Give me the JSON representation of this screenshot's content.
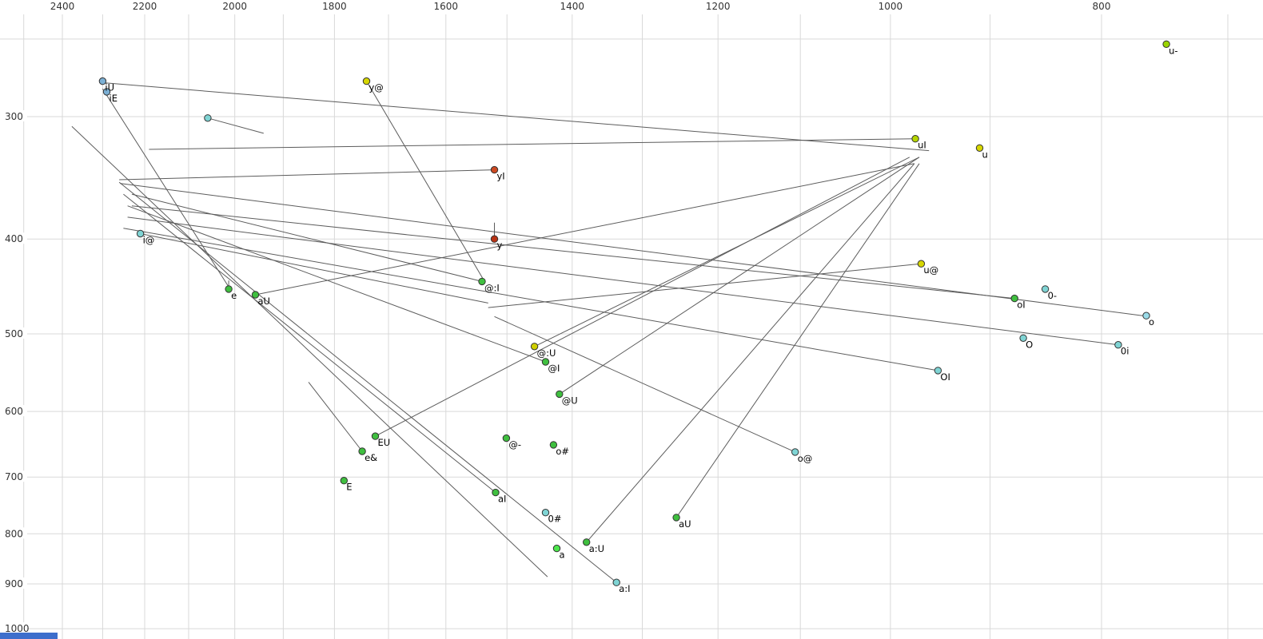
{
  "chart_data": {
    "type": "scatter",
    "title": "",
    "description": "Vowel formant plot (F2 horizontal reversed log scale in Hz, F1 vertical log scale in Hz) with diphthong trajectory lines",
    "x_axis": {
      "position": "top",
      "scale": "log",
      "reversed": true,
      "unit": "Hz",
      "tick_values": [
        2400,
        2200,
        2000,
        1800,
        1600,
        1400,
        1200,
        1000,
        800
      ],
      "tick_labels": [
        "2400",
        "2200",
        "2000",
        "1800",
        "1600",
        "1400",
        "1200",
        "1000",
        "800"
      ],
      "grid_values": [
        2500,
        2400,
        2300,
        2200,
        2100,
        2000,
        1900,
        1800,
        1700,
        1600,
        1500,
        1400,
        1300,
        1200,
        1100,
        1000,
        900,
        800,
        700
      ]
    },
    "y_axis": {
      "position": "left",
      "scale": "log",
      "unit": "Hz",
      "tick_values": [
        300,
        400,
        500,
        600,
        700,
        800,
        900,
        1000
      ],
      "tick_labels": [
        "300",
        "400",
        "500",
        "600",
        "700",
        "800",
        "900",
        "1000"
      ],
      "grid_values": [
        250,
        300,
        400,
        500,
        600,
        700,
        800,
        900,
        1000
      ]
    },
    "grid": true,
    "colors": {
      "grid_line": "#d9d9d9",
      "axis_text": "#333333",
      "trajectory_line": "#5c5c5c",
      "point_stroke": "#333333",
      "point_label": "#000000",
      "bottom_strip": "#3d6ecc"
    },
    "points": [
      {
        "label": "u-",
        "f2": 747,
        "f1": 253,
        "color": "#9ad400"
      },
      {
        "label": "iU",
        "f2": 2300,
        "f1": 276,
        "color": "#7bafd4"
      },
      {
        "label": "iE",
        "f2": 2290,
        "f1": 283,
        "color": "#7bafd4"
      },
      {
        "label": "",
        "f2": 2058,
        "f1": 301,
        "color": "#7fd4d4"
      },
      {
        "label": "y@",
        "f2": 1740,
        "f1": 276,
        "color": "#d6d600"
      },
      {
        "label": "uI",
        "f2": 974,
        "f1": 316,
        "color": "#b4d400"
      },
      {
        "label": "u",
        "f2": 910,
        "f1": 323,
        "color": "#d6d600"
      },
      {
        "label": "yI",
        "f2": 1520,
        "f1": 340,
        "color": "#cc4a22"
      },
      {
        "label": "y",
        "f2": 1520,
        "f1": 400,
        "color": "#b83315"
      },
      {
        "label": "i@",
        "f2": 2210,
        "f1": 395,
        "color": "#7fd4d4"
      },
      {
        "label": "u@",
        "f2": 968,
        "f1": 424,
        "color": "#d6d600"
      },
      {
        "label": "@:I",
        "f2": 1540,
        "f1": 442,
        "color": "#3fbf3f"
      },
      {
        "label": "0-",
        "f2": 849,
        "f1": 450,
        "color": "#7fd4d4"
      },
      {
        "label": "oI",
        "f2": 877,
        "f1": 460,
        "color": "#3fbf3f"
      },
      {
        "label": "e",
        "f2": 2013,
        "f1": 450,
        "color": "#3fbf3f"
      },
      {
        "label": "aU",
        "f2": 1957,
        "f1": 456,
        "color": "#3fbf3f"
      },
      {
        "label": "o",
        "f2": 763,
        "f1": 479,
        "color": "#9adbe8"
      },
      {
        "label": "O",
        "f2": 869,
        "f1": 505,
        "color": "#7fd4d4"
      },
      {
        "label": "0i",
        "f2": 786,
        "f1": 513,
        "color": "#7fd4d4"
      },
      {
        "label": "@:U",
        "f2": 1457,
        "f1": 515,
        "color": "#cfcf00"
      },
      {
        "label": "@I",
        "f2": 1440,
        "f1": 534,
        "color": "#3fbf3f"
      },
      {
        "label": "OI",
        "f2": 951,
        "f1": 545,
        "color": "#7fd4d4"
      },
      {
        "label": "@U",
        "f2": 1419,
        "f1": 576,
        "color": "#3fbf3f"
      },
      {
        "label": "EU",
        "f2": 1724,
        "f1": 636,
        "color": "#3fbf3f"
      },
      {
        "label": "@-",
        "f2": 1501,
        "f1": 639,
        "color": "#3fbf3f"
      },
      {
        "label": "o#",
        "f2": 1428,
        "f1": 649,
        "color": "#3fbf3f"
      },
      {
        "label": "e&",
        "f2": 1748,
        "f1": 659,
        "color": "#3fbf3f"
      },
      {
        "label": "o@",
        "f2": 1106,
        "f1": 660,
        "color": "#7fd4d4"
      },
      {
        "label": "E",
        "f2": 1782,
        "f1": 706,
        "color": "#3fbf3f"
      },
      {
        "label": "aI",
        "f2": 1518,
        "f1": 726,
        "color": "#3fbf3f"
      },
      {
        "label": "0#",
        "f2": 1440,
        "f1": 761,
        "color": "#7fd4d4"
      },
      {
        "label": "aU",
        "f2": 1254,
        "f1": 770,
        "color": "#3fbf3f"
      },
      {
        "label": "a:U",
        "f2": 1379,
        "f1": 816,
        "color": "#3fbf3f"
      },
      {
        "label": "a",
        "f2": 1423,
        "f1": 828,
        "color": "#4ce64c"
      },
      {
        "label": "a:I",
        "f2": 1336,
        "f1": 897,
        "color": "#7fd4d4"
      }
    ],
    "segments": [
      {
        "from": [
          2300,
          277
        ],
        "to": [
          960,
          325
        ]
      },
      {
        "from": [
          2300,
          281
        ],
        "to": [
          2010,
          450
        ]
      },
      {
        "from": [
          1740,
          276
        ],
        "to": [
          1535,
          443
        ]
      },
      {
        "from": [
          974,
          316
        ],
        "to": [
          2190,
          324
        ]
      },
      {
        "from": [
          1520,
          340
        ],
        "to": [
          2260,
          348
        ]
      },
      {
        "from": [
          2210,
          395
        ],
        "to": [
          1530,
          465
        ]
      },
      {
        "from": [
          968,
          424
        ],
        "to": [
          1530,
          470
        ]
      },
      {
        "from": [
          1540,
          442
        ],
        "to": [
          2230,
          360
        ]
      },
      {
        "from": [
          877,
          460
        ],
        "to": [
          2230,
          370
        ]
      },
      {
        "from": [
          786,
          513
        ],
        "to": [
          2240,
          380
        ]
      },
      {
        "from": [
          951,
          545
        ],
        "to": [
          2250,
          390
        ]
      },
      {
        "from": [
          1440,
          534
        ],
        "to": [
          2240,
          370
        ]
      },
      {
        "from": [
          1518,
          726
        ],
        "to": [
          2250,
          360
        ]
      },
      {
        "from": [
          1336,
          897
        ],
        "to": [
          2260,
          350
        ]
      },
      {
        "from": [
          1419,
          576
        ],
        "to": [
          970,
          330
        ]
      },
      {
        "from": [
          1724,
          636
        ],
        "to": [
          980,
          330
        ]
      },
      {
        "from": [
          1254,
          770
        ],
        "to": [
          970,
          335
        ]
      },
      {
        "from": [
          1379,
          816
        ],
        "to": [
          975,
          335
        ]
      },
      {
        "from": [
          1457,
          515
        ],
        "to": [
          970,
          330
        ]
      },
      {
        "from": [
          1957,
          456
        ],
        "to": [
          975,
          335
        ]
      },
      {
        "from": [
          1106,
          660
        ],
        "to": [
          1520,
          480
        ]
      },
      {
        "from": [
          1748,
          659
        ],
        "to": [
          1850,
          560
        ]
      },
      {
        "from": [
          2376,
          307
        ],
        "to": [
          1437,
          885
        ]
      },
      {
        "from": [
          2258,
          351
        ],
        "to": [
          766,
          479
        ]
      },
      {
        "from": [
          2058,
          301
        ],
        "to": [
          1940,
          312
        ]
      },
      {
        "from": [
          1520,
          385
        ],
        "to": [
          1520,
          398
        ]
      },
      {
        "from": [
          2013,
          441
        ],
        "to": [
          2013,
          450
        ]
      }
    ]
  }
}
